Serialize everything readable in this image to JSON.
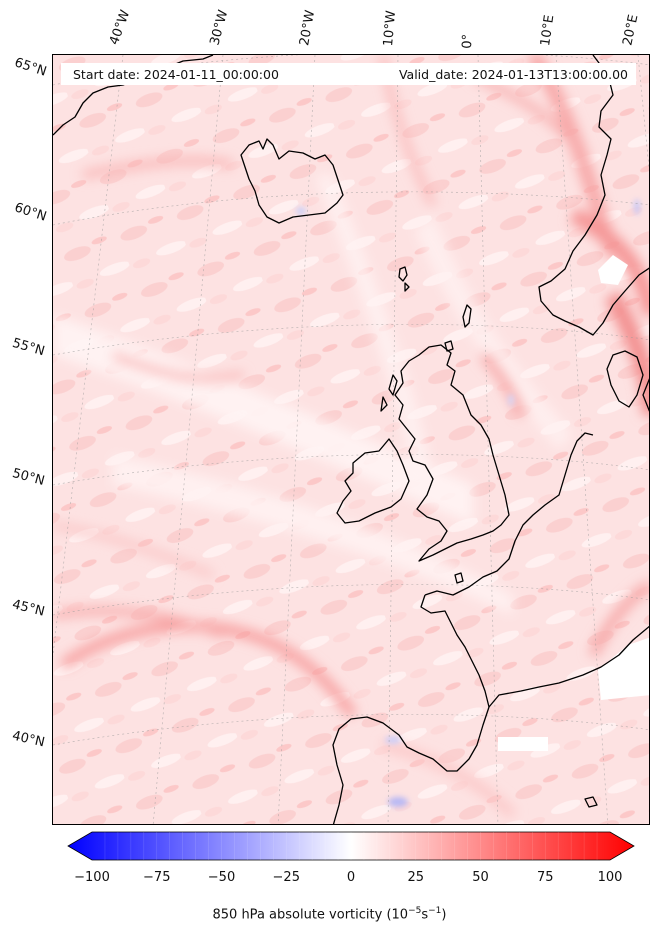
{
  "map": {
    "start_date": "Start date: 2024-01-11_00:00:00",
    "valid_date": "Valid_date: 2024-01-13T13:00:00.00",
    "longitude_labels": [
      "40°W",
      "30°W",
      "20°W",
      "10°W",
      "0°",
      "10°E",
      "20°E"
    ],
    "latitude_labels": [
      "65°N",
      "60°N",
      "55°N",
      "50°N",
      "45°N",
      "40°N"
    ]
  },
  "colorbar": {
    "ticks": [
      "−100",
      "−75",
      "−50",
      "−25",
      "0",
      "25",
      "50",
      "75",
      "100"
    ],
    "label_text": "850 hPa absolute vorticity (10",
    "label_exp1": "−5",
    "label_mid": "s",
    "label_exp2": "−1",
    "label_end": ")",
    "range": [
      -100,
      100
    ],
    "colormap": "bwr",
    "colors": {
      "negative": "#0000ff",
      "zero": "#ffffff",
      "positive": "#ff0000"
    }
  }
}
